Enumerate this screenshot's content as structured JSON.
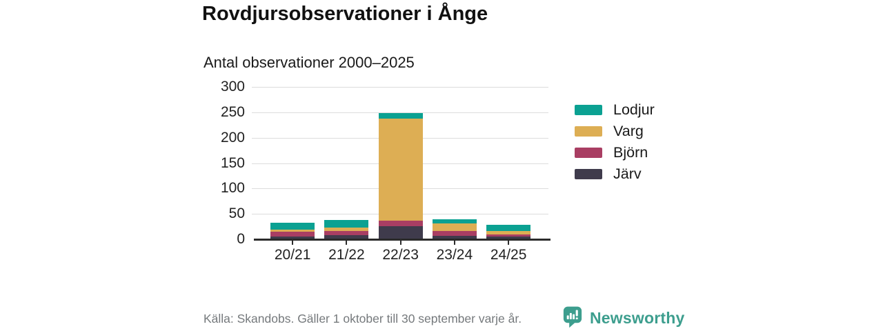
{
  "header": {
    "title": "Rovdjursobservationer i Ånge",
    "subtitle": "Antal observationer 2000–2025"
  },
  "chart_data": {
    "type": "bar",
    "stacked": true,
    "title": "Rovdjursobservationer i Ånge",
    "subtitle": "Antal observationer 2000–2025",
    "categories": [
      "20/21",
      "21/22",
      "22/23",
      "23/24",
      "24/25"
    ],
    "series": [
      {
        "name": "Järv",
        "color": "#3f3b4c",
        "values": [
          5,
          8,
          26,
          7,
          5
        ]
      },
      {
        "name": "Björn",
        "color": "#a93e63",
        "values": [
          10,
          8,
          11,
          9,
          5
        ]
      },
      {
        "name": "Varg",
        "color": "#ddae54",
        "values": [
          4,
          7,
          200,
          15,
          6
        ]
      },
      {
        "name": "Lodjur",
        "color": "#0ba192",
        "values": [
          14,
          15,
          12,
          9,
          12
        ]
      }
    ],
    "stack_order": "bottom-to-top",
    "legend": [
      "Lodjur",
      "Varg",
      "Björn",
      "Järv"
    ],
    "legend_position": "right",
    "xlabel": "",
    "ylabel": "",
    "ylim": [
      0,
      300
    ],
    "yticks": [
      0,
      50,
      100,
      150,
      200,
      250,
      300
    ],
    "grid": true
  },
  "footer": {
    "source_text": "Källa: Skandobs. Gäller 1 oktober till 30 september varje år.",
    "brand": "Newsworthy"
  },
  "colors": {
    "grid": "#dcdcdc",
    "axis": "#2b2b2b",
    "title": "#111111",
    "text": "#222222",
    "muted": "#75797c",
    "brand_teal": "#3d9e8e",
    "background": "#ffffff"
  }
}
